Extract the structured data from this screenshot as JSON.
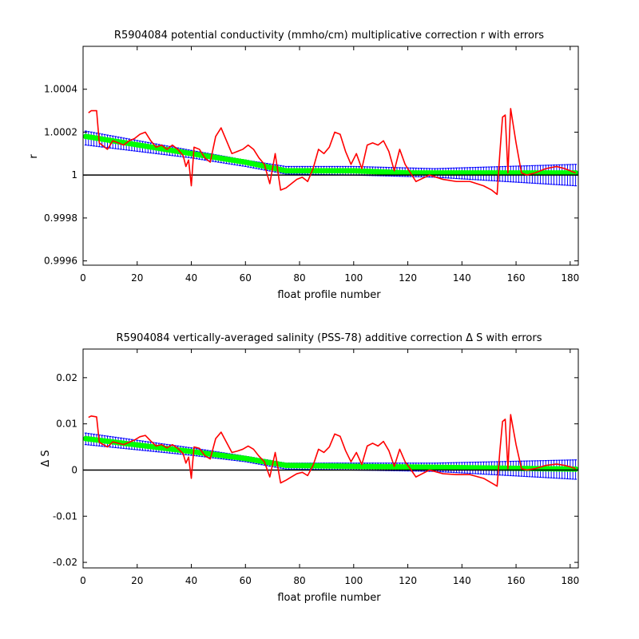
{
  "figure": {
    "background": "#ffffff"
  },
  "colors": {
    "error_bars": "#0000ff",
    "fit": "#00ff00",
    "raw": "#ff0000",
    "zero_line": "#000000"
  },
  "chart_data": [
    {
      "type": "line",
      "title": "R5904084 potential conductivity (mmho/cm) multiplicative correction r with errors",
      "xlabel": "float profile number",
      "ylabel": "r",
      "xlim": [
        0,
        183
      ],
      "ylim": [
        0.99958,
        1.0006
      ],
      "xticks": [
        0,
        20,
        40,
        60,
        80,
        100,
        120,
        140,
        160,
        180
      ],
      "xtick_labels": [
        "0",
        "20",
        "40",
        "60",
        "80",
        "100",
        "120",
        "140",
        "160",
        "180"
      ],
      "yticks": [
        0.9996,
        0.9998,
        1.0,
        1.0002,
        1.0004
      ],
      "ytick_labels": [
        "0.9996",
        "0.9998",
        "1",
        "1.0002",
        "1.0004"
      ],
      "reference_line": 1.0,
      "grid": false,
      "legend": "none",
      "series": [
        {
          "style": "errorbar",
          "color": "#0000ff",
          "x_start": 1,
          "x_end": 182,
          "center_points": [
            [
              1,
              1.00018
            ],
            [
              40,
              1.0001
            ],
            [
              60,
              1.00006
            ],
            [
              75,
              1.00002
            ],
            [
              100,
              1.00002
            ],
            [
              120,
              1.00001
            ],
            [
              150,
              1.00001
            ],
            [
              182,
              1.00001
            ]
          ],
          "upper_points": [
            [
              1,
              1.000205
            ],
            [
              40,
              1.000115
            ],
            [
              60,
              1.00007
            ],
            [
              75,
              1.00004
            ],
            [
              100,
              1.00004
            ],
            [
              130,
              1.00003
            ],
            [
              182,
              1.00005
            ]
          ],
          "lower_points": [
            [
              1,
              1.00014
            ],
            [
              40,
              1.00008
            ],
            [
              60,
              1.00004
            ],
            [
              75,
              1.000005
            ],
            [
              100,
              1.0
            ],
            [
              130,
              0.99999
            ],
            [
              182,
              0.99995
            ]
          ]
        },
        {
          "style": "markers",
          "color": "#00ff00",
          "x_start": 1,
          "x_end": 182,
          "points": [
            [
              1,
              1.00018
            ],
            [
              40,
              1.0001
            ],
            [
              60,
              1.00006
            ],
            [
              75,
              1.00002
            ],
            [
              100,
              1.00002
            ],
            [
              120,
              1.00001
            ],
            [
              150,
              1.00001
            ],
            [
              182,
              1.00001
            ]
          ]
        },
        {
          "style": "line",
          "color": "#ff0000",
          "points": [
            [
              2,
              1.00029
            ],
            [
              3,
              1.0003
            ],
            [
              5,
              1.0003
            ],
            [
              6,
              1.00015
            ],
            [
              9,
              1.00012
            ],
            [
              11,
              1.00016
            ],
            [
              13,
              1.00015
            ],
            [
              15,
              1.00014
            ],
            [
              17,
              1.00016
            ],
            [
              19,
              1.00017
            ],
            [
              21,
              1.00019
            ],
            [
              23,
              1.0002
            ],
            [
              25,
              1.00016
            ],
            [
              27,
              1.00013
            ],
            [
              29,
              1.00014
            ],
            [
              31,
              1.00012
            ],
            [
              33,
              1.00014
            ],
            [
              35,
              1.00012
            ],
            [
              37,
              1.00009
            ],
            [
              38,
              1.00004
            ],
            [
              39,
              1.00007
            ],
            [
              40,
              0.99995
            ],
            [
              41,
              1.00013
            ],
            [
              43,
              1.00012
            ],
            [
              45,
              1.00008
            ],
            [
              47,
              1.00006
            ],
            [
              49,
              1.00018
            ],
            [
              51,
              1.00022
            ],
            [
              53,
              1.00016
            ],
            [
              55,
              1.0001
            ],
            [
              57,
              1.00011
            ],
            [
              59,
              1.00012
            ],
            [
              61,
              1.00014
            ],
            [
              63,
              1.00012
            ],
            [
              65,
              1.00008
            ],
            [
              67,
              1.00005
            ],
            [
              69,
              0.99996
            ],
            [
              71,
              1.0001
            ],
            [
              73,
              0.99993
            ],
            [
              75,
              0.99994
            ],
            [
              77,
              0.99996
            ],
            [
              79,
              0.99998
            ],
            [
              81,
              0.99999
            ],
            [
              83,
              0.99997
            ],
            [
              85,
              1.00003
            ],
            [
              87,
              1.00012
            ],
            [
              89,
              1.0001
            ],
            [
              91,
              1.00013
            ],
            [
              93,
              1.0002
            ],
            [
              95,
              1.00019
            ],
            [
              97,
              1.00011
            ],
            [
              99,
              1.00005
            ],
            [
              101,
              1.0001
            ],
            [
              103,
              1.00003
            ],
            [
              105,
              1.00014
            ],
            [
              107,
              1.00015
            ],
            [
              109,
              1.00014
            ],
            [
              111,
              1.00016
            ],
            [
              113,
              1.00011
            ],
            [
              115,
              1.00002
            ],
            [
              117,
              1.00012
            ],
            [
              119,
              1.00005
            ],
            [
              121,
              1.00001
            ],
            [
              123,
              0.99997
            ],
            [
              128,
              1.0
            ],
            [
              133,
              0.99998
            ],
            [
              138,
              0.99997
            ],
            [
              143,
              0.99997
            ],
            [
              148,
              0.99995
            ],
            [
              151,
              0.99993
            ],
            [
              153,
              0.99991
            ],
            [
              154,
              1.0001
            ],
            [
              155,
              1.00027
            ],
            [
              156,
              1.00028
            ],
            [
              157,
              1.00001
            ],
            [
              158,
              1.00031
            ],
            [
              160,
              1.00015
            ],
            [
              162,
              1.00001
            ],
            [
              164,
              1.0
            ],
            [
              167,
              1.00001
            ],
            [
              171,
              1.00003
            ],
            [
              175,
              1.00004
            ],
            [
              178,
              1.00003
            ],
            [
              180,
              1.00002
            ],
            [
              182,
              1.00001
            ]
          ]
        }
      ]
    },
    {
      "type": "line",
      "title": "R5904084 vertically-averaged salinity (PSS-78) additive correction Δ S with errors",
      "xlabel": "float profile number",
      "ylabel": "Δ S",
      "xlim": [
        0,
        183
      ],
      "ylim": [
        -0.0212,
        0.0262
      ],
      "xticks": [
        0,
        20,
        40,
        60,
        80,
        100,
        120,
        140,
        160,
        180
      ],
      "xtick_labels": [
        "0",
        "20",
        "40",
        "60",
        "80",
        "100",
        "120",
        "140",
        "160",
        "180"
      ],
      "yticks": [
        -0.02,
        -0.01,
        0,
        0.01,
        0.02
      ],
      "ytick_labels": [
        "-0.02",
        "-0.01",
        "0",
        "0.01",
        "0.02"
      ],
      "reference_line": 0,
      "grid": false,
      "legend": "none",
      "series": [
        {
          "style": "errorbar",
          "color": "#0000ff",
          "x_start": 1,
          "x_end": 182,
          "center_points": [
            [
              1,
              0.0068
            ],
            [
              40,
              0.004
            ],
            [
              60,
              0.0025
            ],
            [
              75,
              0.001
            ],
            [
              100,
              0.0008
            ],
            [
              130,
              0.0006
            ],
            [
              182,
              0.0002
            ]
          ],
          "upper_points": [
            [
              1,
              0.008
            ],
            [
              40,
              0.0048
            ],
            [
              60,
              0.003
            ],
            [
              75,
              0.0015
            ],
            [
              100,
              0.0015
            ],
            [
              130,
              0.0015
            ],
            [
              182,
              0.0022
            ]
          ],
          "lower_points": [
            [
              1,
              0.0055
            ],
            [
              40,
              0.0032
            ],
            [
              60,
              0.0018
            ],
            [
              75,
              0.0002
            ],
            [
              100,
              0.0
            ],
            [
              130,
              -0.0003
            ],
            [
              182,
              -0.002
            ]
          ]
        },
        {
          "style": "markers",
          "color": "#00ff00",
          "x_start": 1,
          "x_end": 182,
          "points": [
            [
              1,
              0.0068
            ],
            [
              40,
              0.004
            ],
            [
              60,
              0.0025
            ],
            [
              75,
              0.001
            ],
            [
              100,
              0.0008
            ],
            [
              130,
              0.0006
            ],
            [
              182,
              0.0002
            ]
          ]
        },
        {
          "style": "line",
          "color": "#ff0000",
          "points": [
            [
              2,
              0.0114
            ],
            [
              3,
              0.0117
            ],
            [
              5,
              0.0115
            ],
            [
              6,
              0.006
            ],
            [
              9,
              0.005
            ],
            [
              11,
              0.0061
            ],
            [
              13,
              0.0058
            ],
            [
              15,
              0.0055
            ],
            [
              17,
              0.006
            ],
            [
              19,
              0.0065
            ],
            [
              21,
              0.0072
            ],
            [
              23,
              0.0075
            ],
            [
              25,
              0.0063
            ],
            [
              27,
              0.0052
            ],
            [
              29,
              0.0055
            ],
            [
              31,
              0.0048
            ],
            [
              33,
              0.0055
            ],
            [
              35,
              0.0047
            ],
            [
              37,
              0.0035
            ],
            [
              38,
              0.0015
            ],
            [
              39,
              0.0028
            ],
            [
              40,
              -0.0018
            ],
            [
              41,
              0.005
            ],
            [
              43,
              0.0047
            ],
            [
              45,
              0.0031
            ],
            [
              47,
              0.0024
            ],
            [
              49,
              0.0068
            ],
            [
              51,
              0.0082
            ],
            [
              53,
              0.006
            ],
            [
              55,
              0.0038
            ],
            [
              57,
              0.0041
            ],
            [
              59,
              0.0045
            ],
            [
              61,
              0.0052
            ],
            [
              63,
              0.0045
            ],
            [
              65,
              0.003
            ],
            [
              67,
              0.0018
            ],
            [
              69,
              -0.0015
            ],
            [
              71,
              0.0038
            ],
            [
              73,
              -0.0028
            ],
            [
              75,
              -0.0022
            ],
            [
              77,
              -0.0015
            ],
            [
              79,
              -0.0008
            ],
            [
              81,
              -0.0005
            ],
            [
              83,
              -0.0012
            ],
            [
              85,
              0.001
            ],
            [
              87,
              0.0045
            ],
            [
              89,
              0.0038
            ],
            [
              91,
              0.005
            ],
            [
              93,
              0.0078
            ],
            [
              95,
              0.0073
            ],
            [
              97,
              0.0042
            ],
            [
              99,
              0.0018
            ],
            [
              101,
              0.0038
            ],
            [
              103,
              0.0012
            ],
            [
              105,
              0.0052
            ],
            [
              107,
              0.0058
            ],
            [
              109,
              0.0052
            ],
            [
              111,
              0.0062
            ],
            [
              113,
              0.0042
            ],
            [
              115,
              0.0008
            ],
            [
              117,
              0.0045
            ],
            [
              119,
              0.0018
            ],
            [
              121,
              0.0002
            ],
            [
              123,
              -0.0015
            ],
            [
              128,
              0.0
            ],
            [
              133,
              -0.0008
            ],
            [
              138,
              -0.001
            ],
            [
              143,
              -0.001
            ],
            [
              148,
              -0.0018
            ],
            [
              151,
              -0.0028
            ],
            [
              153,
              -0.0035
            ],
            [
              154,
              0.004
            ],
            [
              155,
              0.0105
            ],
            [
              156,
              0.011
            ],
            [
              157,
              0.0003
            ],
            [
              158,
              0.012
            ],
            [
              160,
              0.0055
            ],
            [
              162,
              0.0003
            ],
            [
              164,
              0.0
            ],
            [
              167,
              0.0003
            ],
            [
              171,
              0.001
            ],
            [
              175,
              0.0013
            ],
            [
              178,
              0.001
            ],
            [
              180,
              0.0007
            ],
            [
              182,
              0.0003
            ]
          ]
        }
      ]
    }
  ]
}
